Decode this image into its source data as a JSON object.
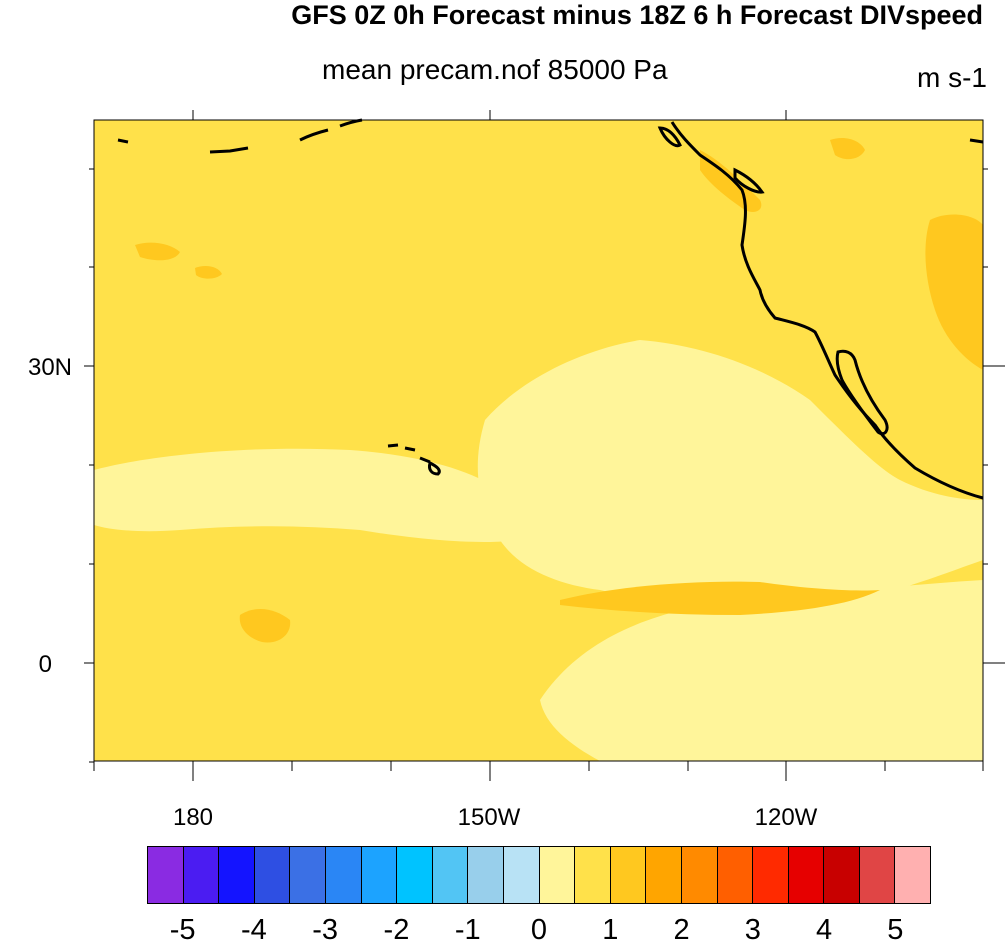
{
  "title": "GFS 0Z 0h Forecast minus 18Z 6 h Forecast DIVspeed",
  "subtitle": "mean precam.nof 85000 Pa",
  "units": "m s-1",
  "lat_labels": [
    "30N",
    "0"
  ],
  "lon_labels": [
    "180",
    "150W",
    "120W"
  ],
  "colorbar": {
    "colors": [
      "#8a2be2",
      "#4b1cf2",
      "#1414ff",
      "#2e4fe3",
      "#3b70e5",
      "#2a86f5",
      "#1ca3ff",
      "#00c3ff",
      "#52c5f4",
      "#98cfeb",
      "#b8e2f5",
      "#fff59a",
      "#ffe14a",
      "#ffc81f",
      "#ffa500",
      "#ff8a00",
      "#ff5f00",
      "#ff2a00",
      "#e60000",
      "#c80000",
      "#e04545",
      "#ffb0b0"
    ],
    "labels": [
      "-5",
      "-4",
      "-3",
      "-2",
      "-1",
      "0",
      "1",
      "2",
      "3",
      "4",
      "5"
    ]
  },
  "field_colors": {
    "base": "#ffe14a",
    "light": "#fff59a",
    "orange": "#ffc81f"
  }
}
